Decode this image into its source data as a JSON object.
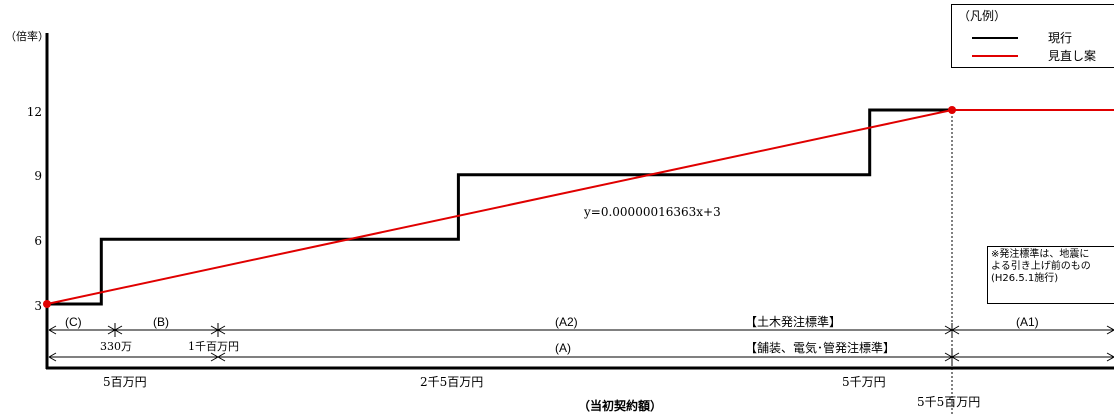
{
  "chart_data": {
    "type": "line",
    "title": "",
    "xlabel": "（当初契約額）",
    "ylabel": "（倍率）",
    "y_ticks": [
      "3",
      "6",
      "9",
      "12"
    ],
    "ylim": [
      0,
      15
    ],
    "x_tick_labels": [
      "5百万円",
      "2千5百万円",
      "5千万円",
      "5千5百万円"
    ],
    "series": [
      {
        "name": "現行",
        "color": "#000000",
        "points": [
          [
            0,
            3
          ],
          [
            3300000,
            3
          ],
          [
            3300000,
            6
          ],
          [
            25000000,
            6
          ],
          [
            25000000,
            9
          ],
          [
            50000000,
            9
          ],
          [
            50000000,
            12
          ],
          [
            55000000,
            12
          ]
        ]
      },
      {
        "name": "見直し案",
        "color": "#e00000",
        "points": [
          [
            0,
            3
          ],
          [
            55000000,
            12
          ],
          [
            65000000,
            12
          ]
        ]
      }
    ],
    "legend": {
      "title": "（凡例）",
      "entries": [
        "現行",
        "見直し案"
      ]
    },
    "formula": "y=0.00000016363x+3",
    "ranges_upper": [
      "(C)",
      "(B)",
      "(A2)",
      "(A1)"
    ],
    "ranges_lower": [
      "(A)"
    ],
    "boundary_labels": [
      "330万",
      "1千百万円"
    ],
    "standards": [
      "【土木発注標準】",
      "【舗装、電気･管発注標準】"
    ],
    "note": [
      "※発注標準は、地震に",
      "よる引き上げ前のもの",
      "(H26.5.1施行)"
    ]
  }
}
